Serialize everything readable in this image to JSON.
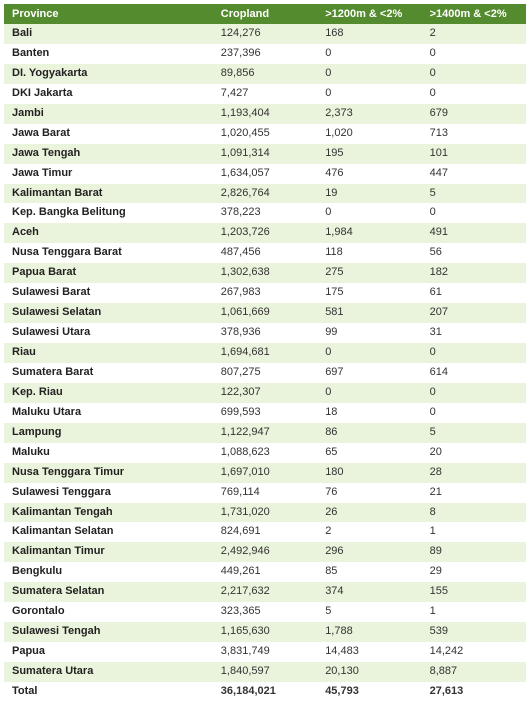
{
  "table": {
    "columns": [
      {
        "key": "province",
        "label": "Province"
      },
      {
        "key": "cropland",
        "label": "Cropland"
      },
      {
        "key": "c1200",
        "label": ">1200m & <2%"
      },
      {
        "key": "c1400",
        "label": ">1400m & <2%"
      }
    ],
    "rows": [
      {
        "province": "Bali",
        "cropland": "124,276",
        "c1200": "168",
        "c1400": "2"
      },
      {
        "province": "Banten",
        "cropland": "237,396",
        "c1200": "0",
        "c1400": "0"
      },
      {
        "province": "DI. Yogyakarta",
        "cropland": "89,856",
        "c1200": "0",
        "c1400": "0"
      },
      {
        "province": "DKI Jakarta",
        "cropland": "7,427",
        "c1200": "0",
        "c1400": "0"
      },
      {
        "province": "Jambi",
        "cropland": "1,193,404",
        "c1200": "2,373",
        "c1400": "679"
      },
      {
        "province": "Jawa Barat",
        "cropland": "1,020,455",
        "c1200": "1,020",
        "c1400": "713"
      },
      {
        "province": "Jawa Tengah",
        "cropland": "1,091,314",
        "c1200": "195",
        "c1400": "101"
      },
      {
        "province": "Jawa Timur",
        "cropland": "1,634,057",
        "c1200": "476",
        "c1400": "447"
      },
      {
        "province": "Kalimantan Barat",
        "cropland": "2,826,764",
        "c1200": "19",
        "c1400": "5"
      },
      {
        "province": "Kep. Bangka Belitung",
        "cropland": "378,223",
        "c1200": "0",
        "c1400": "0"
      },
      {
        "province": "Aceh",
        "cropland": "1,203,726",
        "c1200": "1,984",
        "c1400": "491"
      },
      {
        "province": "Nusa Tenggara Barat",
        "cropland": "487,456",
        "c1200": "118",
        "c1400": "56"
      },
      {
        "province": "Papua Barat",
        "cropland": "1,302,638",
        "c1200": "275",
        "c1400": "182"
      },
      {
        "province": "Sulawesi Barat",
        "cropland": "267,983",
        "c1200": "175",
        "c1400": "61"
      },
      {
        "province": "Sulawesi Selatan",
        "cropland": "1,061,669",
        "c1200": "581",
        "c1400": "207"
      },
      {
        "province": "Sulawesi Utara",
        "cropland": "378,936",
        "c1200": "99",
        "c1400": "31"
      },
      {
        "province": "Riau",
        "cropland": "1,694,681",
        "c1200": "0",
        "c1400": "0"
      },
      {
        "province": "Sumatera Barat",
        "cropland": "807,275",
        "c1200": "697",
        "c1400": "614"
      },
      {
        "province": "Kep. Riau",
        "cropland": "122,307",
        "c1200": "0",
        "c1400": "0"
      },
      {
        "province": "Maluku Utara",
        "cropland": "699,593",
        "c1200": "18",
        "c1400": "0"
      },
      {
        "province": "Lampung",
        "cropland": "1,122,947",
        "c1200": "86",
        "c1400": "5"
      },
      {
        "province": "Maluku",
        "cropland": "1,088,623",
        "c1200": "65",
        "c1400": "20"
      },
      {
        "province": "Nusa Tenggara Timur",
        "cropland": "1,697,010",
        "c1200": "180",
        "c1400": "28"
      },
      {
        "province": "Sulawesi Tenggara",
        "cropland": "769,114",
        "c1200": "76",
        "c1400": "21"
      },
      {
        "province": "Kalimantan Tengah",
        "cropland": "1,731,020",
        "c1200": "26",
        "c1400": "8"
      },
      {
        "province": "Kalimantan Selatan",
        "cropland": "824,691",
        "c1200": "2",
        "c1400": "1"
      },
      {
        "province": "Kalimantan Timur",
        "cropland": "2,492,946",
        "c1200": "296",
        "c1400": "89"
      },
      {
        "province": "Bengkulu",
        "cropland": "449,261",
        "c1200": "85",
        "c1400": "29"
      },
      {
        "province": "Sumatera Selatan",
        "cropland": "2,217,632",
        "c1200": "374",
        "c1400": "155"
      },
      {
        "province": "Gorontalo",
        "cropland": "323,365",
        "c1200": "5",
        "c1400": "1"
      },
      {
        "province": "Sulawesi Tengah",
        "cropland": "1,165,630",
        "c1200": "1,788",
        "c1400": "539"
      },
      {
        "province": "Papua",
        "cropland": "3,831,749",
        "c1200": "14,483",
        "c1400": "14,242"
      },
      {
        "province": "Sumatera Utara",
        "cropland": "1,840,597",
        "c1200": "20,130",
        "c1400": "8,887"
      }
    ],
    "total": {
      "province": "Total",
      "cropland": "36,184,021",
      "c1200": "45,793",
      "c1400": "27,613"
    },
    "styling": {
      "header_bg": "#558b2f",
      "header_text_color": "#ffffff",
      "row_stripe_even_bg": "#eaf3db",
      "row_stripe_odd_bg": "#ffffff",
      "font_family": "Verdana",
      "font_size_pt": 8,
      "first_col_bold": true,
      "column_widths_pct": [
        40,
        20,
        20,
        20
      ]
    }
  }
}
